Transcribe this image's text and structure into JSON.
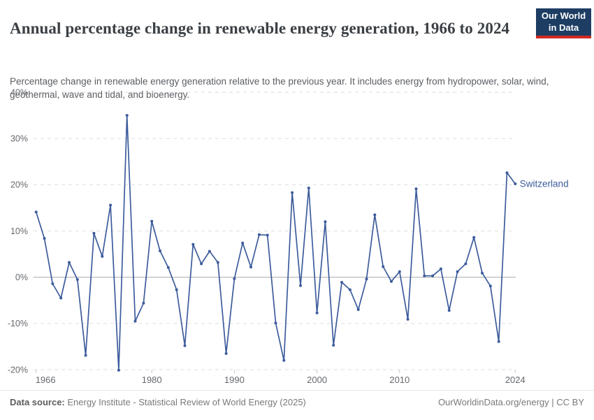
{
  "header": {
    "title": "Annual percentage change in renewable energy generation, 1966 to 2024",
    "subtitle": "Percentage change in renewable energy generation relative to the previous year. It includes energy from hydropower, solar, wind, geothermal, wave and tidal, and bioenergy.",
    "logo": {
      "line1": "Our World",
      "line2": "in Data"
    }
  },
  "chart_data": {
    "type": "line",
    "title": "Annual percentage change in renewable energy generation, 1966 to 2024",
    "xlabel": "",
    "ylabel": "",
    "xlim": [
      1966,
      2024
    ],
    "ylim": [
      -20,
      40
    ],
    "x_ticks": [
      1966,
      1980,
      1990,
      2000,
      2010,
      2024
    ],
    "y_ticks": [
      40,
      30,
      20,
      10,
      0,
      -10,
      -20
    ],
    "y_tick_suffix": "%",
    "grid": "horizontal-dashed",
    "zero_line": true,
    "legend_position": "line-end-label",
    "series": [
      {
        "name": "Switzerland",
        "color": "#3d5c9c",
        "x": [
          1966,
          1967,
          1968,
          1969,
          1970,
          1971,
          1972,
          1973,
          1974,
          1975,
          1976,
          1977,
          1978,
          1979,
          1980,
          1981,
          1982,
          1983,
          1984,
          1985,
          1986,
          1987,
          1988,
          1989,
          1990,
          1991,
          1992,
          1993,
          1994,
          1995,
          1996,
          1997,
          1998,
          1999,
          2000,
          2001,
          2002,
          2003,
          2004,
          2005,
          2006,
          2007,
          2008,
          2009,
          2010,
          2011,
          2012,
          2013,
          2014,
          2015,
          2016,
          2017,
          2018,
          2019,
          2020,
          2021,
          2022,
          2023,
          2024
        ],
        "values": [
          14.1,
          8.4,
          -1.4,
          -4.5,
          3.2,
          -0.5,
          -16.9,
          9.5,
          4.5,
          15.6,
          -20.1,
          35,
          -9.5,
          -5.6,
          12.1,
          5.7,
          2.1,
          -2.7,
          -14.8,
          7.1,
          2.9,
          5.6,
          3.2,
          -16.5,
          -0.3,
          7.4,
          2.2,
          9.2,
          9.1,
          -9.9,
          -18,
          18.3,
          -1.8,
          19.3,
          -7.7,
          12,
          -14.7,
          -1.1,
          -2.7,
          -7,
          -0.4,
          13.5,
          2.3,
          -0.9,
          1.2,
          -9.1,
          19.1,
          0.3,
          0.3,
          1.8,
          -7.2,
          1.2,
          2.9,
          8.6,
          0.9,
          -1.9,
          -13.9,
          22.6,
          20.2
        ]
      }
    ]
  },
  "colors": {
    "line": "#3d5c9c",
    "grid": "#dedede",
    "zero_line": "#a8a8a8",
    "axis_text": "#67696d",
    "tick_mark": "#c4c4c4",
    "logo_bg": "#1d3d63",
    "logo_accent": "#cf2a22"
  },
  "footer": {
    "source_label": "Data source:",
    "source_text": " Energy Institute - Statistical Review of World Energy (2025)",
    "right_text": "OurWorldinData.org/energy | CC BY"
  }
}
